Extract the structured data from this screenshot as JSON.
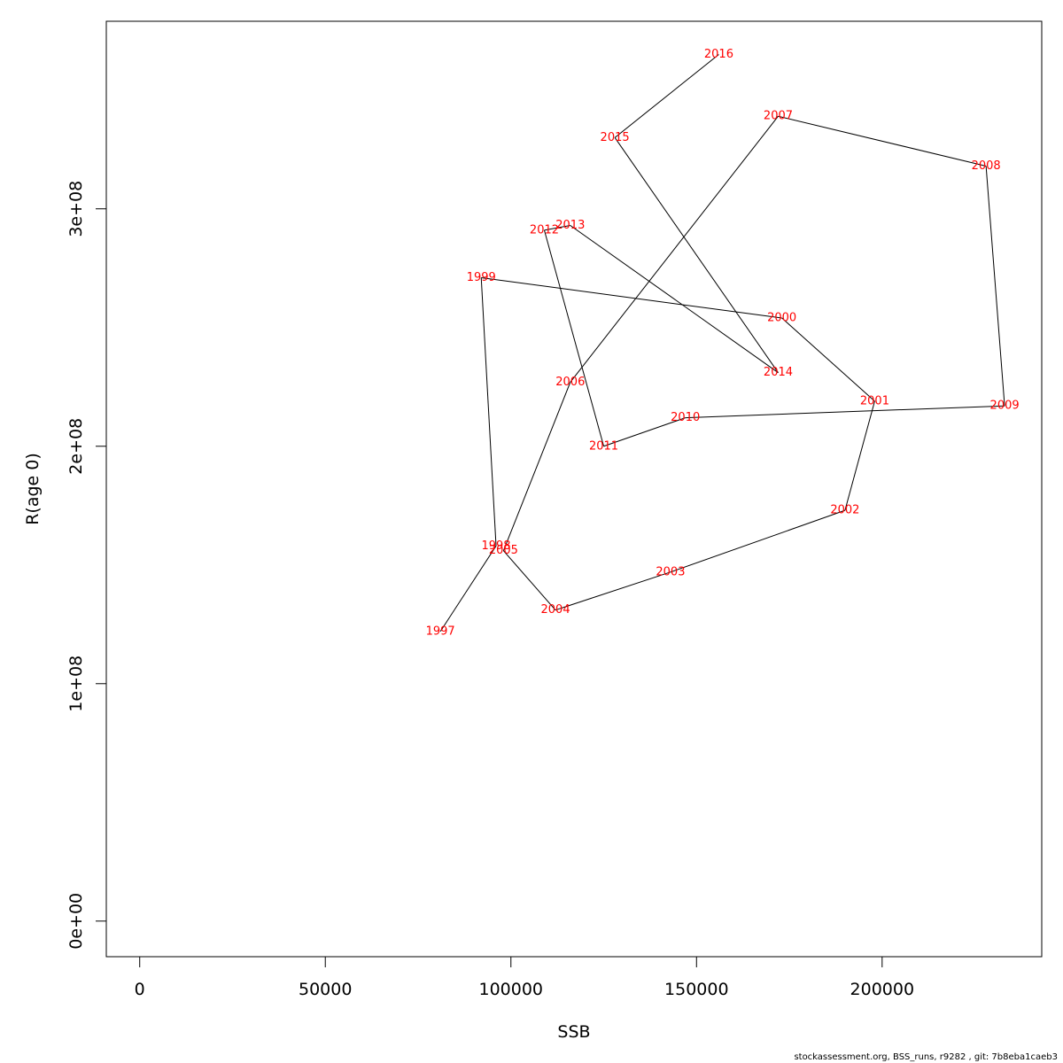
{
  "chart_data": {
    "type": "line",
    "xlabel": "SSB",
    "ylabel": "R(age 0)",
    "xlim": [
      -9000,
      243000
    ],
    "ylim": [
      -15000000,
      379000000
    ],
    "x_ticks": [
      0,
      50000,
      100000,
      150000,
      200000
    ],
    "x_tick_labels": [
      "0",
      "50000",
      "100000",
      "150000",
      "200000"
    ],
    "y_ticks": [
      0,
      100000000,
      200000000,
      300000000
    ],
    "y_tick_labels": [
      "0e+00",
      "1e+08",
      "2e+08",
      "3e+08"
    ],
    "grid": false,
    "line_color": "#000000",
    "label_color": "#ff0000",
    "points": [
      {
        "year": "1997",
        "x": 81000,
        "y": 122000000
      },
      {
        "year": "1998",
        "x": 96000,
        "y": 158000000
      },
      {
        "year": "1999",
        "x": 92000,
        "y": 271000000
      },
      {
        "year": "2000",
        "x": 173000,
        "y": 254000000
      },
      {
        "year": "2001",
        "x": 198000,
        "y": 219000000
      },
      {
        "year": "2002",
        "x": 190000,
        "y": 173000000
      },
      {
        "year": "2003",
        "x": 143000,
        "y": 147000000
      },
      {
        "year": "2004",
        "x": 112000,
        "y": 131000000
      },
      {
        "year": "2005",
        "x": 98000,
        "y": 156000000
      },
      {
        "year": "2006",
        "x": 116000,
        "y": 227000000
      },
      {
        "year": "2007",
        "x": 172000,
        "y": 339000000
      },
      {
        "year": "2008",
        "x": 228000,
        "y": 318000000
      },
      {
        "year": "2009",
        "x": 233000,
        "y": 217000000
      },
      {
        "year": "2010",
        "x": 147000,
        "y": 212000000
      },
      {
        "year": "2011",
        "x": 125000,
        "y": 200000000
      },
      {
        "year": "2012",
        "x": 109000,
        "y": 291000000
      },
      {
        "year": "2013",
        "x": 116000,
        "y": 293000000
      },
      {
        "year": "2014",
        "x": 172000,
        "y": 231000000
      },
      {
        "year": "2015",
        "x": 128000,
        "y": 330000000
      },
      {
        "year": "2016",
        "x": 156000,
        "y": 365000000
      }
    ]
  },
  "footer": "stockassessment.org, BSS_runs, r9282 , git: 7b8eba1caeb3"
}
